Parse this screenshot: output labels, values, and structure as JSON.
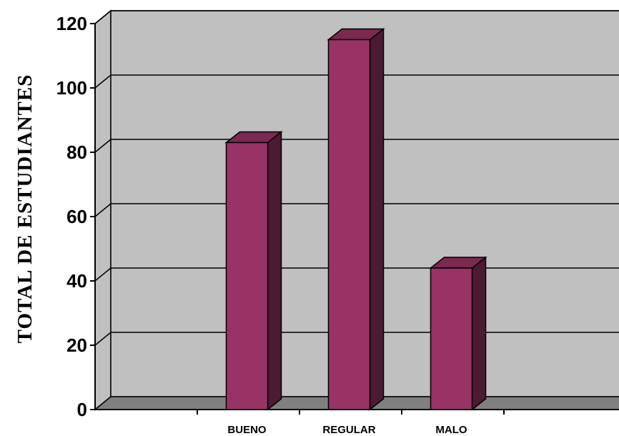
{
  "chart_data": {
    "type": "bar",
    "categories": [
      "BUENO",
      "REGULAR",
      "MALO"
    ],
    "values": [
      83,
      115,
      44
    ],
    "ylabel": "TOTAL  DE  ESTUDIANTES",
    "xlabel": "",
    "ylim": [
      0,
      120
    ],
    "yticks": [
      0,
      20,
      40,
      60,
      80,
      100,
      120
    ],
    "grid": true,
    "three_d": true
  },
  "colors": {
    "plot_background": "#c0c0c0",
    "floor": "#808080",
    "bar_front": "#993366",
    "bar_top": "#7a2951",
    "bar_side": "#4d1a33",
    "gridline": "#000000"
  }
}
